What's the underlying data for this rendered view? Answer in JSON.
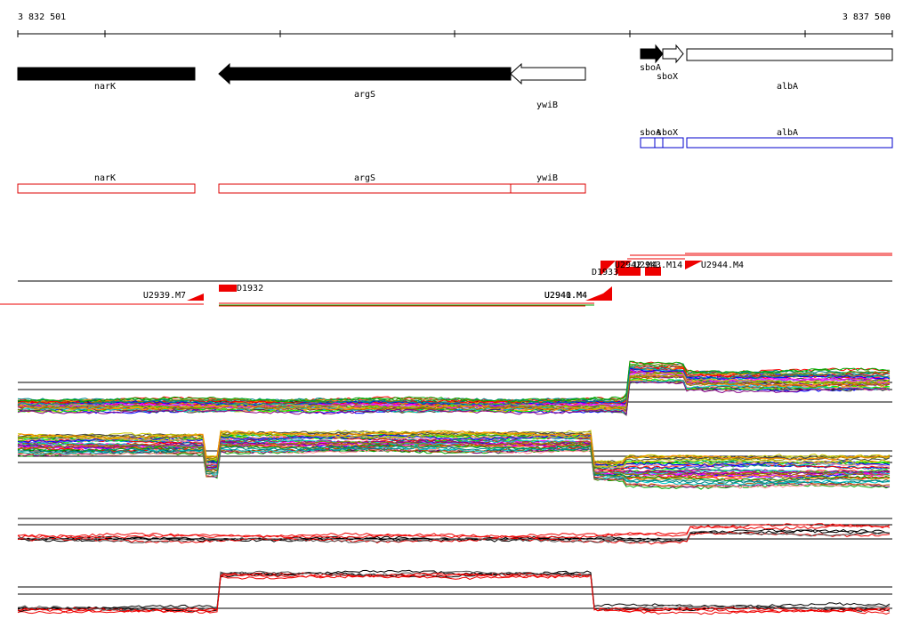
{
  "ruler": {
    "start": "3 832 501",
    "end": "3 837 500"
  },
  "genes": [
    "narK",
    "argS",
    "ywiB",
    "sboA",
    "sboX",
    "albA"
  ],
  "annotations": [
    "sboA",
    "sboX",
    "albA"
  ],
  "regions": [
    "narK",
    "argS",
    "ywiB"
  ],
  "transcripts": [
    "U2939.M7",
    "D1932",
    "U2940.M4",
    "U2941.M4",
    "D1933",
    "U2942.M4",
    "U2943.M14",
    "U2944.M4"
  ]
}
